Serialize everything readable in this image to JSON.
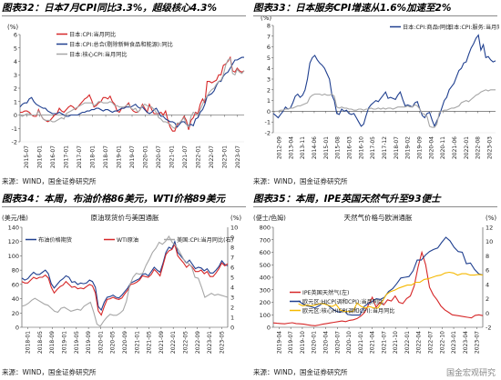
{
  "source_text": "来源：WIND，国金证券研究所",
  "watermark": "国金宏观研究",
  "chart_data": [
    {
      "id": "c32",
      "type": "line",
      "title": "图表32：日本7月CPI同比3.3%，超级核心4.3%",
      "yunit": "(%)",
      "ylim": [
        -2,
        6
      ],
      "yticks": [
        -2,
        -1,
        0,
        1,
        2,
        3,
        4,
        5,
        6
      ],
      "xtick_labels": [
        "2015-07",
        "2016-01",
        "2016-07",
        "2017-01",
        "2017-07",
        "2018-01",
        "2018-07",
        "2019-01",
        "2019-07",
        "2020-01",
        "2020-07",
        "2021-01",
        "2021-07",
        "2022-01",
        "2022-07",
        "2023-01",
        "2023-07"
      ],
      "legend": [
        "日本:CPI:当月同比",
        "日本:CPI:总合(剔除新鲜食品和能源):同比",
        "日本:核心CPI:当月同比"
      ],
      "colors": [
        "#d62728",
        "#1f3f8f",
        "#a6a6a6"
      ],
      "series": [
        {
          "name": "日本:CPI:当月同比",
          "values": [
            0.2,
            0.2,
            0.3,
            0.3,
            0.2,
            0.0,
            -0.1,
            -0.1,
            0.4,
            0.0,
            -0.3,
            -0.4,
            -0.5,
            -0.4,
            -0.2,
            0.0,
            0.1,
            0.5,
            0.3,
            0.2,
            0.4,
            0.6,
            0.7,
            0.6,
            0.4,
            0.6,
            0.8,
            1.0,
            1.2,
            1.3,
            1.5,
            1.1,
            0.6,
            0.7,
            0.9,
            1.0,
            1.3,
            1.3,
            1.2,
            1.4,
            1.0,
            0.8,
            0.3,
            0.2,
            0.5,
            0.5,
            0.7,
            0.9,
            0.5,
            0.3,
            0.2,
            0.2,
            0.4,
            0.8,
            0.5,
            0.2,
            0.8,
            0.4,
            0.1,
            0.1,
            0.1,
            0.2,
            0.0,
            0.3,
            -0.4,
            -0.9,
            -1.2,
            -1.2,
            -0.7,
            -0.6,
            -0.4,
            -0.1,
            -0.4,
            -1.1,
            -0.4,
            -0.2,
            0.2,
            0.1,
            0.8,
            1.2,
            0.9,
            2.5,
            2.5,
            2.4,
            2.5,
            2.6,
            3.0,
            3.0,
            3.7,
            3.8,
            4.0,
            4.3,
            3.3,
            3.2,
            3.5,
            3.3,
            3.2,
            3.3
          ]
        },
        {
          "name": "日本:CPI:总合(剔除新鲜食品和能源):同比",
          "values": [
            0.6,
            0.8,
            0.9,
            0.9,
            1.2,
            1.3,
            1.0,
            0.8,
            0.7,
            0.6,
            0.5,
            0.5,
            0.3,
            0.2,
            0.1,
            0.1,
            0.1,
            0.2,
            0.1,
            0.0,
            -0.1,
            -0.1,
            0.0,
            0.0,
            0.0,
            0.0,
            0.1,
            0.2,
            0.2,
            0.3,
            0.3,
            0.4,
            0.4,
            0.5,
            0.5,
            0.4,
            0.3,
            0.4,
            0.4,
            0.3,
            0.2,
            0.3,
            0.3,
            0.4,
            0.5,
            0.5,
            0.6,
            0.6,
            0.6,
            0.7,
            0.8,
            0.6,
            0.5,
            0.6,
            0.4,
            0.2,
            0.1,
            0.2,
            0.4,
            0.5,
            0.2,
            -0.1,
            -0.1,
            -0.3,
            -0.4,
            -0.5,
            -0.5,
            -0.6,
            -0.9,
            -0.7,
            -0.5,
            -0.5,
            -0.7,
            -0.8,
            -0.7,
            -0.8,
            -0.3,
            -0.2,
            0.2,
            0.4,
            0.8,
            1.4,
            1.5,
            1.6,
            1.8,
            2.2,
            2.5,
            2.5,
            2.9,
            3.1,
            3.2,
            3.5,
            3.8,
            4.1,
            4.1,
            4.2,
            4.3,
            4.3
          ]
        },
        {
          "name": "日本:核心CPI:当月同比",
          "values": [
            0.0,
            -0.1,
            0.0,
            0.1,
            0.1,
            0.0,
            0.0,
            0.0,
            0.3,
            0.0,
            -0.3,
            -0.4,
            -0.4,
            -0.4,
            -0.5,
            -0.5,
            -0.4,
            -0.3,
            -0.2,
            -0.3,
            0.1,
            0.2,
            0.3,
            0.4,
            0.5,
            0.6,
            0.7,
            0.8,
            0.9,
            0.9,
            0.9,
            0.9,
            0.7,
            0.8,
            1.0,
            1.0,
            0.9,
            0.9,
            0.9,
            1.0,
            0.9,
            0.7,
            0.7,
            0.6,
            0.6,
            0.6,
            0.7,
            0.8,
            0.5,
            0.4,
            0.5,
            0.2,
            0.4,
            0.7,
            0.8,
            0.7,
            0.6,
            0.6,
            0.4,
            0.2,
            -0.2,
            -0.3,
            -0.5,
            -0.5,
            -0.6,
            -0.7,
            -0.9,
            -1.0,
            -0.6,
            -0.6,
            -0.4,
            -0.2,
            -0.7,
            -0.9,
            -0.1,
            0.2,
            0.1,
            0.0,
            0.4,
            0.8,
            1.2,
            1.4,
            1.7,
            1.9,
            2.0,
            2.3,
            2.5,
            2.6,
            3.0,
            3.7,
            4.1,
            4.2,
            3.1,
            3.0,
            3.4,
            3.2,
            3.1,
            3.3
          ]
        }
      ]
    },
    {
      "id": "c33",
      "type": "line",
      "title": "图表33：日本服务CPI增速从1.6%加速至2%",
      "yunit": "(%)",
      "ylim": [
        -2,
        8
      ],
      "yticks": [
        -2,
        -1,
        0,
        1,
        2,
        3,
        4,
        5,
        6,
        7,
        8
      ],
      "xtick_labels": [
        "2012-09",
        "2013-04",
        "2013-11",
        "2014-06",
        "2015-01",
        "2015-08",
        "2016-03",
        "2016-10",
        "2017-05",
        "2017-12",
        "2018-07",
        "2019-02",
        "2019-09",
        "2020-04",
        "2020-11",
        "2021-06",
        "2022-01",
        "2022-08",
        "2023-03"
      ],
      "legend": [
        "日本:CPI:商品:同比",
        "日本:CPI:服务:当月同比"
      ],
      "colors": [
        "#1f3f8f",
        "#a6a6a6"
      ],
      "series": [
        {
          "name": "日本:CPI:商品:同比",
          "values": [
            -0.2,
            -0.4,
            -0.6,
            -0.3,
            0.0,
            0.4,
            0.2,
            0.3,
            0.8,
            1.4,
            1.6,
            1.3,
            1.5,
            2.0,
            3.0,
            4.5,
            5.0,
            5.2,
            4.8,
            4.5,
            4.3,
            4.0,
            3.5,
            3.0,
            1.5,
            1.0,
            -0.2,
            -0.3,
            0.2,
            0.0,
            0.1,
            -0.2,
            -0.3,
            -0.2,
            -0.6,
            -1.0,
            -1.4,
            -1.2,
            -0.4,
            0.3,
            0.6,
            0.8,
            1.0,
            0.9,
            1.2,
            1.5,
            1.8,
            1.2,
            1.3,
            1.2,
            1.1,
            1.5,
            1.8,
            1.1,
            0.5,
            0.6,
            0.5,
            0.4,
            0.8,
            0.9,
            0.2,
            -0.4,
            -0.6,
            -0.2,
            -0.1,
            -0.8,
            -1.4,
            -0.9,
            -0.4,
            0.3,
            1.0,
            1.3,
            2.0,
            2.3,
            2.6,
            3.2,
            3.8,
            4.0,
            4.5,
            4.6,
            5.3,
            5.9,
            6.3,
            6.8,
            7.1,
            5.7,
            6.2,
            5.0,
            5.1,
            4.8,
            4.6,
            4.7
          ]
        },
        {
          "name": "日本:CPI:服务:当月同比",
          "values": [
            -0.1,
            0.0,
            0.0,
            0.1,
            0.1,
            0.2,
            0.2,
            0.3,
            0.3,
            0.4,
            0.5,
            0.5,
            0.6,
            0.7,
            0.8,
            1.3,
            1.5,
            1.6,
            1.6,
            1.6,
            1.5,
            1.6,
            1.5,
            1.5,
            1.6,
            1.4,
            0.4,
            0.3,
            0.4,
            0.3,
            0.3,
            0.2,
            0.2,
            0.1,
            0.1,
            0.2,
            0.2,
            0.1,
            0.2,
            0.2,
            0.3,
            0.2,
            0.2,
            0.3,
            0.2,
            0.3,
            0.2,
            0.3,
            0.3,
            0.2,
            0.3,
            0.4,
            0.4,
            0.4,
            0.4,
            0.5,
            0.4,
            0.4,
            0.6,
            0.5,
            0.2,
            -0.2,
            -0.3,
            -0.5,
            -1.4,
            -1.5,
            -1.5,
            -1.2,
            -0.1,
            0.0,
            0.1,
            0.1,
            0.2,
            0.3,
            0.3,
            0.4,
            0.5,
            0.8,
            0.9,
            1.0,
            0.9,
            1.1,
            1.3,
            1.5,
            1.6,
            1.8,
            1.9,
            2.0,
            1.9,
            2.0,
            2.0,
            2.0
          ]
        }
      ]
    },
    {
      "id": "c34",
      "type": "line",
      "title": "图表34：本周，布油价格86美元，WTI价格89美元",
      "chart_title": "原油现货价与美国通胀",
      "yunit_left": "(美元/桶)",
      "yunit_right": "(%)",
      "ylim": [
        0,
        140
      ],
      "yticks": [
        0,
        20,
        40,
        60,
        80,
        100,
        120,
        140
      ],
      "ylim_right": [
        0,
        10
      ],
      "yticks_right": [
        0,
        1,
        2,
        3,
        4,
        5,
        6,
        7,
        8,
        9,
        10
      ],
      "xtick_labels": [
        "2018-01",
        "2018-05",
        "2018-09",
        "2019-01",
        "2019-05",
        "2019-09",
        "2020-01",
        "2020-05",
        "2020-09",
        "2021-01",
        "2021-05",
        "2021-09",
        "2022-01",
        "2022-05",
        "2022-09",
        "2023-01",
        "2023-05"
      ],
      "legend": [
        "布油价格期货",
        "WTI原油",
        "美国:CPI:当月同比(右)"
      ],
      "colors": [
        "#1f3f8f",
        "#d62728",
        "#a6a6a6"
      ],
      "series": [
        {
          "name": "布油价格期货",
          "values": [
            69,
            66,
            68,
            73,
            77,
            74,
            74,
            77,
            80,
            75,
            61,
            55,
            60,
            65,
            68,
            72,
            70,
            63,
            64,
            60,
            62,
            61,
            62,
            66,
            64,
            56,
            29,
            24,
            35,
            42,
            43,
            45,
            42,
            41,
            45,
            50,
            55,
            62,
            64,
            66,
            68,
            74,
            75,
            72,
            78,
            84,
            80,
            77,
            90,
            105,
            112,
            110,
            120,
            105,
            100,
            95,
            90,
            94,
            88,
            82,
            84,
            83,
            79,
            82,
            76,
            76,
            80,
            85,
            93,
            88,
            86
          ]
        },
        {
          "name": "WTI原油",
          "values": [
            64,
            62,
            62,
            66,
            70,
            68,
            70,
            70,
            73,
            69,
            56,
            48,
            53,
            57,
            59,
            64,
            60,
            56,
            57,
            54,
            55,
            54,
            57,
            60,
            58,
            48,
            23,
            17,
            29,
            39,
            40,
            42,
            40,
            39,
            41,
            47,
            52,
            60,
            61,
            63,
            66,
            72,
            71,
            70,
            74,
            81,
            77,
            72,
            87,
            102,
            107,
            109,
            116,
            100,
            95,
            90,
            84,
            88,
            84,
            78,
            78,
            80,
            75,
            78,
            71,
            71,
            76,
            82,
            90,
            86,
            89
          ]
        },
        {
          "name": "美国:CPI:当月同比(右)",
          "values": [
            2.1,
            2.2,
            2.4,
            2.7,
            2.9,
            2.7,
            2.5,
            2.3,
            2.2,
            1.9,
            1.6,
            1.5,
            1.9,
            2.0,
            1.8,
            1.6,
            1.7,
            1.8,
            1.7,
            2.1,
            2.3,
            2.5,
            1.5,
            0.3,
            0.1,
            0.6,
            1.0,
            1.3,
            1.2,
            1.2,
            1.4,
            1.7,
            2.6,
            4.2,
            5.0,
            5.4,
            5.3,
            5.4,
            6.2,
            6.8,
            7.5,
            7.9,
            8.5,
            8.3,
            8.6,
            9.1,
            8.5,
            8.2,
            7.7,
            7.1,
            6.5,
            6.4,
            6.0,
            5.0,
            4.9,
            4.0,
            3.0,
            3.2,
            3.4,
            3.2,
            3.3,
            3.2,
            3.1,
            3.0
          ]
        }
      ]
    },
    {
      "id": "c35",
      "type": "line",
      "title": "图表35：本周，IPE英国天然气升至93便士",
      "chart_title": "天然气价格与欧洲通胀",
      "yunit_left": "(便士/色姆)",
      "yunit_right": "(%)",
      "ylim": [
        0,
        800
      ],
      "yticks": [
        0,
        100,
        200,
        300,
        400,
        500,
        600,
        700,
        800
      ],
      "ylim_right": [
        -2,
        12
      ],
      "yticks_right": [
        -2,
        0,
        2,
        4,
        6,
        8,
        10,
        12
      ],
      "xtick_labels": [
        "2019-04",
        "2019-07",
        "2019-10",
        "2020-01",
        "2020-04",
        "2020-07",
        "2020-10",
        "2021-01",
        "2021-04",
        "2021-07",
        "2021-10",
        "2022-01",
        "2022-04",
        "2022-07",
        "2022-10",
        "2023-01",
        "2023-04",
        "2023-07"
      ],
      "legend": [
        "IPE英国天然气(左)",
        "欧元区:HICP(调和CPI):当月同比",
        "欧元区:核心HICP(调和CPI):当月同比"
      ],
      "colors": [
        "#d62728",
        "#1f3f8f",
        "#f5b800"
      ],
      "series": [
        {
          "name": "IPE英国天然气(左)",
          "values": [
            35,
            32,
            30,
            28,
            33,
            36,
            30,
            28,
            25,
            20,
            15,
            12,
            18,
            25,
            30,
            35,
            40,
            45,
            50,
            45,
            55,
            60,
            70,
            90,
            120,
            180,
            240,
            160,
            200,
            180,
            220,
            210,
            250,
            200,
            190,
            230,
            250,
            330,
            480,
            600,
            500,
            320,
            260,
            220,
            170,
            140,
            120,
            100,
            95,
            90,
            85,
            80,
            75,
            95,
            100,
            93
          ]
        },
        {
          "name": "欧元区:HICP(调和CPI):当月同比",
          "values": [
            1.7,
            1.3,
            1.0,
            0.9,
            0.7,
            1.0,
            1.4,
            1.2,
            0.7,
            0.3,
            0.1,
            0.4,
            -0.2,
            -0.3,
            -0.3,
            -0.3,
            0.9,
            1.3,
            1.6,
            2.0,
            1.9,
            2.2,
            3.0,
            3.4,
            4.1,
            4.9,
            5.0,
            5.1,
            5.9,
            7.4,
            7.4,
            8.1,
            8.6,
            8.9,
            9.1,
            9.9,
            10.6,
            10.1,
            9.2,
            8.6,
            8.5,
            6.9,
            7.0,
            6.1,
            5.5,
            5.3
          ]
        },
        {
          "name": "欧元区:核心HICP(调和CPI):当月同比",
          "values": [
            1.3,
            1.0,
            1.1,
            1.0,
            1.1,
            1.3,
            1.3,
            1.1,
            0.9,
            1.2,
            0.4,
            0.2,
            0.2,
            0.2,
            1.4,
            0.9,
            0.7,
            0.9,
            0.7,
            0.7,
            1.6,
            2.6,
            3.0,
            3.2,
            3.5,
            3.7,
            3.9,
            3.9,
            4.3,
            4.3,
            4.7,
            4.8,
            5.0,
            5.2,
            5.3,
            5.6,
            5.7,
            5.6,
            5.3,
            5.5,
            5.5,
            5.3,
            5.3,
            5.4,
            5.3
          ]
        }
      ]
    }
  ]
}
